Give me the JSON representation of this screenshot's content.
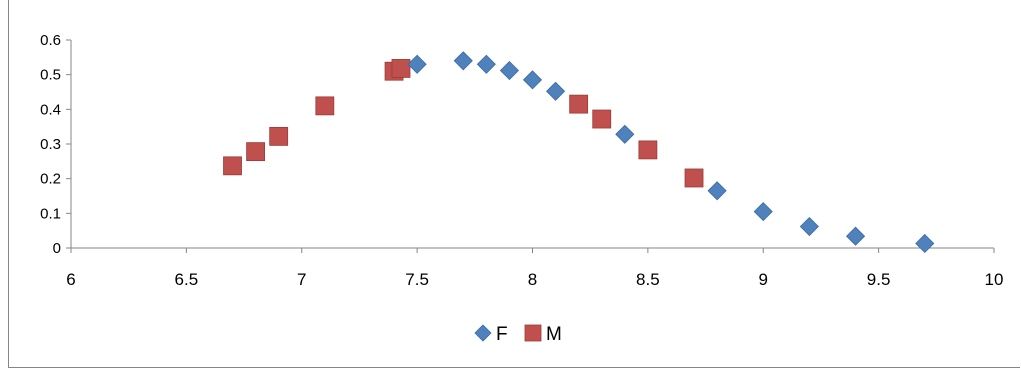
{
  "chart_data": {
    "type": "scatter",
    "title": "",
    "xlabel": "",
    "ylabel": "",
    "xlim": [
      6,
      10
    ],
    "ylim": [
      0,
      0.6
    ],
    "x_ticks": [
      "6",
      "6.5",
      "7",
      "7.5",
      "8",
      "8.5",
      "9",
      "9.5",
      "10"
    ],
    "y_ticks": [
      "0",
      "0.1",
      "0.2",
      "0.3",
      "0.4",
      "0.5",
      "0.6"
    ],
    "grid": false,
    "legend_position": "bottom",
    "series": [
      {
        "name": "F",
        "marker": "diamond",
        "color": "#4F81BD",
        "points": [
          [
            7.5,
            0.53
          ],
          [
            7.7,
            0.54
          ],
          [
            7.8,
            0.53
          ],
          [
            7.9,
            0.512
          ],
          [
            8.0,
            0.485
          ],
          [
            8.1,
            0.452
          ],
          [
            8.4,
            0.328
          ],
          [
            8.8,
            0.165
          ],
          [
            9.0,
            0.105
          ],
          [
            9.2,
            0.062
          ],
          [
            9.4,
            0.034
          ],
          [
            9.7,
            0.013
          ]
        ]
      },
      {
        "name": "M",
        "marker": "square",
        "color": "#C0504D",
        "points": [
          [
            6.7,
            0.237
          ],
          [
            6.8,
            0.278
          ],
          [
            6.9,
            0.322
          ],
          [
            7.1,
            0.41
          ],
          [
            7.4,
            0.51
          ],
          [
            7.43,
            0.518
          ],
          [
            8.2,
            0.415
          ],
          [
            8.3,
            0.372
          ],
          [
            8.5,
            0.283
          ],
          [
            8.7,
            0.202
          ]
        ]
      }
    ]
  }
}
